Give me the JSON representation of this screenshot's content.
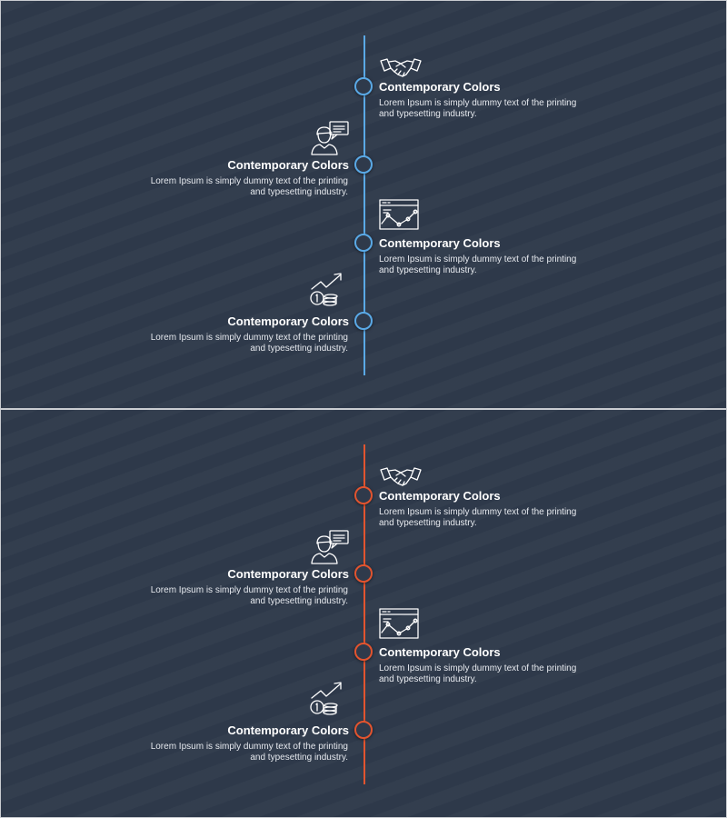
{
  "slides": [
    {
      "accent": "#5aa9e6",
      "items": [
        {
          "icon": "handshake-icon",
          "title": "Contemporary Colors",
          "text": "Lorem Ipsum is simply dummy text of the printing and typesetting industry."
        },
        {
          "icon": "person-speech-icon",
          "title": "Contemporary Colors",
          "text": "Lorem Ipsum is simply dummy text of the printing and typesetting industry."
        },
        {
          "icon": "chart-window-icon",
          "title": "Contemporary Colors",
          "text": "Lorem Ipsum is simply dummy text of the printing and typesetting industry."
        },
        {
          "icon": "coins-growth-icon",
          "title": "Contemporary Colors",
          "text": "Lorem Ipsum is simply dummy text of the printing and typesetting industry."
        }
      ]
    },
    {
      "accent": "#e2542f",
      "items": [
        {
          "icon": "handshake-icon",
          "title": "Contemporary Colors",
          "text": "Lorem Ipsum is simply dummy text of the printing and typesetting industry."
        },
        {
          "icon": "person-speech-icon",
          "title": "Contemporary Colors",
          "text": "Lorem Ipsum is simply dummy text of the printing and typesetting industry."
        },
        {
          "icon": "chart-window-icon",
          "title": "Contemporary Colors",
          "text": "Lorem Ipsum is simply dummy text of the printing and typesetting industry."
        },
        {
          "icon": "coins-growth-icon",
          "title": "Contemporary Colors",
          "text": "Lorem Ipsum is simply dummy text of the printing and typesetting industry."
        }
      ]
    }
  ]
}
